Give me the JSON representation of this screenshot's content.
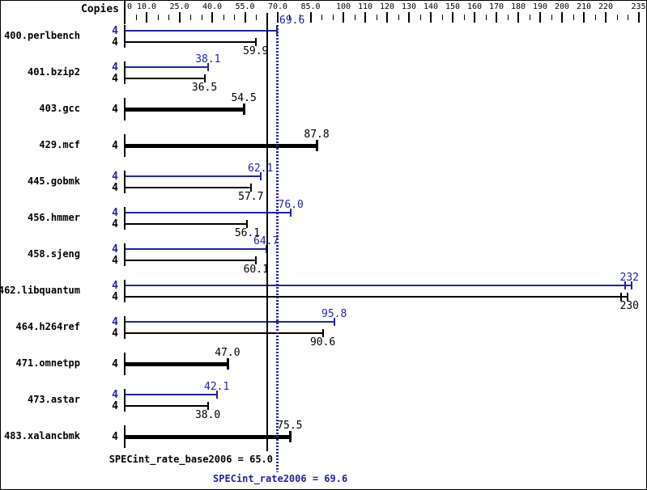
{
  "header": {
    "copies_label": "Copies"
  },
  "colors": {
    "peak_blue": "#2222aa",
    "base_black": "#000000",
    "background": "#ffffff"
  },
  "chart_data": {
    "type": "bar",
    "orientation": "horizontal",
    "title": "",
    "xlabel": "",
    "ylabel": "Copies",
    "xlim": [
      0,
      235
    ],
    "grid": false,
    "axis": {
      "major_ticks": [
        {
          "v": 0,
          "label": "0"
        },
        {
          "v": 10,
          "label": "10.0"
        },
        {
          "v": 25,
          "label": "25.0"
        },
        {
          "v": 40,
          "label": "40.0"
        },
        {
          "v": 55,
          "label": "55.0"
        },
        {
          "v": 70,
          "label": "70.0"
        },
        {
          "v": 85,
          "label": "85.0"
        },
        {
          "v": 100,
          "label": "100"
        },
        {
          "v": 110,
          "label": "110"
        },
        {
          "v": 120,
          "label": "120"
        },
        {
          "v": 130,
          "label": "130"
        },
        {
          "v": 140,
          "label": "140"
        },
        {
          "v": 150,
          "label": "150"
        },
        {
          "v": 160,
          "label": "160"
        },
        {
          "v": 170,
          "label": "170"
        },
        {
          "v": 180,
          "label": "180"
        },
        {
          "v": 190,
          "label": "190"
        },
        {
          "v": 200,
          "label": "200"
        },
        {
          "v": 210,
          "label": "210"
        },
        {
          "v": 220,
          "label": "220"
        },
        {
          "v": 235,
          "label": "235"
        }
      ],
      "minor_step": 5
    },
    "series": [
      {
        "name": "peak",
        "color": "#2222aa"
      },
      {
        "name": "base",
        "color": "#000000"
      }
    ],
    "benchmarks": [
      {
        "name": "400.perlbench",
        "copies": 4,
        "peak": 69.6,
        "peak_label": "",
        "base": 59.9,
        "base_label": "59.9"
      },
      {
        "name": "401.bzip2",
        "copies": 4,
        "peak": 38.1,
        "peak_label": "38.1",
        "base": 36.5,
        "base_label": "36.5"
      },
      {
        "name": "403.gcc",
        "copies": 4,
        "base": 54.5,
        "base_label": "54.5",
        "base_only": true
      },
      {
        "name": "429.mcf",
        "copies": 4,
        "base": 87.8,
        "base_label": "87.8",
        "base_only": true
      },
      {
        "name": "445.gobmk",
        "copies": 4,
        "peak": 62.1,
        "peak_label": "62.1",
        "base": 57.7,
        "base_label": "57.7"
      },
      {
        "name": "456.hmmer",
        "copies": 4,
        "peak": 76.0,
        "peak_label": "76.0",
        "base": 56.1,
        "base_label": "56.1"
      },
      {
        "name": "458.sjeng",
        "copies": 4,
        "peak": 64.7,
        "peak_label": "64.7",
        "base": 60.1,
        "base_label": "60.1"
      },
      {
        "name": "462.libquantum",
        "copies": 4,
        "peak": 232,
        "peak_label": "232",
        "base": 230,
        "base_label": "230",
        "double_cap": true
      },
      {
        "name": "464.h264ref",
        "copies": 4,
        "peak": 95.8,
        "peak_label": "95.8",
        "base": 90.6,
        "base_label": "90.6"
      },
      {
        "name": "471.omnetpp",
        "copies": 4,
        "base": 47.0,
        "base_label": "47.0",
        "base_only": true
      },
      {
        "name": "473.astar",
        "copies": 4,
        "peak": 42.1,
        "peak_label": "42.1",
        "base": 38.0,
        "base_label": "38.0"
      },
      {
        "name": "483.xalancbmk",
        "copies": 4,
        "base": 75.5,
        "base_label": "75.5",
        "base_only": true
      }
    ],
    "reference_lines": [
      {
        "id": "base_mean",
        "value": 65.0,
        "style": "solid",
        "color": "#000000",
        "top_label": ""
      },
      {
        "id": "peak_mean",
        "value": 69.6,
        "style": "dotted",
        "color": "#2222aa",
        "top_label": "69.6"
      }
    ],
    "summary": {
      "base_text": "SPECint_rate_base2006 = 65.0",
      "peak_text": "SPECint_rate2006 = 69.6"
    }
  }
}
